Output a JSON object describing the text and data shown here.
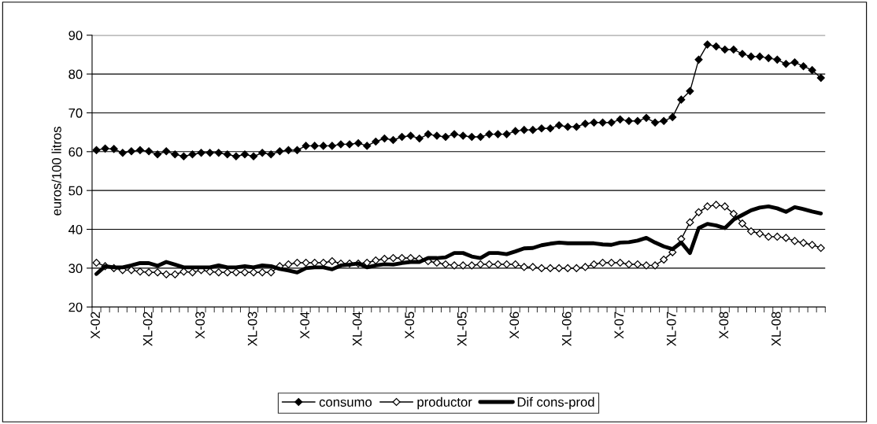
{
  "chart_data": {
    "type": "line",
    "ylabel": "euros/100 litros",
    "categories": [
      "X-02",
      null,
      null,
      null,
      null,
      null,
      "XL-02",
      null,
      null,
      null,
      null,
      null,
      "X-03",
      null,
      null,
      null,
      null,
      null,
      "XL-03",
      null,
      null,
      null,
      null,
      null,
      "X-04",
      null,
      null,
      null,
      null,
      null,
      "XL-04",
      null,
      null,
      null,
      null,
      null,
      "X-05",
      null,
      null,
      null,
      null,
      null,
      "XL-05",
      null,
      null,
      null,
      null,
      null,
      "X-06",
      null,
      null,
      null,
      null,
      null,
      "XL-06",
      null,
      null,
      null,
      null,
      null,
      "X-07",
      null,
      null,
      null,
      null,
      null,
      "XL-07",
      null,
      null,
      null,
      null,
      null,
      "X-08",
      null,
      null,
      null,
      null,
      null,
      "XL-08",
      null,
      null,
      null,
      null,
      null
    ],
    "ylim": [
      20,
      90
    ],
    "yticks": [
      20,
      30,
      40,
      50,
      60,
      70,
      80,
      90
    ],
    "grid": "y",
    "legend": "bottom",
    "series": [
      {
        "name": "consumo",
        "color": "#000000",
        "marker": "diamond",
        "values": [
          60.4,
          60.8,
          60.7,
          59.7,
          60.1,
          60.4,
          60.1,
          59.3,
          60.1,
          59.3,
          58.8,
          59.3,
          59.7,
          59.7,
          59.7,
          59.3,
          58.8,
          59.3,
          58.8,
          59.7,
          59.3,
          60.1,
          60.4,
          60.4,
          61.5,
          61.5,
          61.5,
          61.5,
          61.9,
          61.9,
          62.2,
          61.5,
          62.6,
          63.4,
          63.0,
          63.8,
          64.1,
          63.4,
          64.5,
          64.1,
          63.8,
          64.5,
          64.1,
          63.8,
          63.8,
          64.5,
          64.5,
          64.5,
          65.3,
          65.6,
          65.6,
          66.0,
          66.0,
          66.8,
          66.4,
          66.4,
          67.2,
          67.5,
          67.5,
          67.5,
          68.3,
          67.9,
          67.9,
          68.7,
          67.5,
          67.9,
          68.9,
          73.4,
          75.6,
          83.7,
          87.6,
          87.1,
          86.3,
          86.3,
          85.2,
          84.5,
          84.5,
          84.1,
          83.7,
          82.6,
          83.0,
          82.0,
          81.0,
          79.0
        ]
      },
      {
        "name": "productor",
        "color": "#000000",
        "marker": "diamond-open",
        "values": [
          31.4,
          30.5,
          30.0,
          29.5,
          29.5,
          29.1,
          28.9,
          28.9,
          28.4,
          28.4,
          29.1,
          28.9,
          29.5,
          29.1,
          28.9,
          28.9,
          28.9,
          28.9,
          28.9,
          28.9,
          28.9,
          30.5,
          31.0,
          31.4,
          31.4,
          31.4,
          31.4,
          31.8,
          31.2,
          31.2,
          31.2,
          31.4,
          32.0,
          32.4,
          32.6,
          32.6,
          32.6,
          32.4,
          31.8,
          31.4,
          31.0,
          30.7,
          30.7,
          30.7,
          31.0,
          31.0,
          31.0,
          31.0,
          31.0,
          30.3,
          30.3,
          30.0,
          30.0,
          30.0,
          30.0,
          30.0,
          30.3,
          31.0,
          31.4,
          31.4,
          31.4,
          31.0,
          31.0,
          30.7,
          30.7,
          32.2,
          34.1,
          37.5,
          41.8,
          44.4,
          45.9,
          46.3,
          45.9,
          44.0,
          41.5,
          39.5,
          38.9,
          38.1,
          38.1,
          37.8,
          37.0,
          36.5,
          36.0,
          35.2
        ]
      },
      {
        "name": "Dif cons-prod",
        "color": "#000000",
        "marker": "none",
        "values": [
          28.5,
          30.5,
          30.2,
          30.2,
          30.7,
          31.3,
          31.3,
          30.6,
          31.6,
          30.9,
          30.2,
          30.2,
          30.2,
          30.2,
          30.7,
          30.2,
          30.2,
          30.5,
          30.2,
          30.7,
          30.5,
          29.8,
          29.4,
          28.9,
          30.0,
          30.2,
          30.2,
          29.7,
          30.7,
          30.9,
          31.2,
          30.2,
          30.7,
          31.0,
          30.9,
          31.3,
          31.6,
          31.6,
          32.6,
          32.6,
          32.8,
          33.9,
          33.9,
          33.0,
          32.6,
          33.9,
          33.9,
          33.6,
          34.3,
          35.1,
          35.2,
          35.9,
          36.3,
          36.6,
          36.4,
          36.4,
          36.4,
          36.4,
          36.1,
          36.0,
          36.6,
          36.7,
          37.1,
          37.8,
          36.6,
          35.6,
          34.9,
          36.6,
          33.9,
          40.3,
          41.4,
          41.0,
          40.3,
          42.5,
          43.7,
          44.9,
          45.6,
          45.9,
          45.4,
          44.5,
          45.7,
          45.2,
          44.6,
          44.1
        ]
      }
    ]
  }
}
